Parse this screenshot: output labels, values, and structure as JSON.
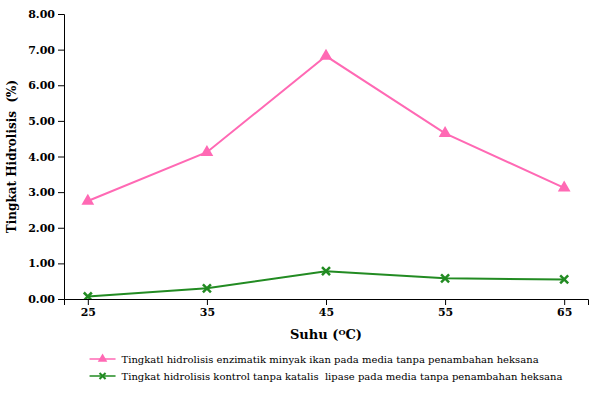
{
  "chart_data": {
    "type": "line",
    "x": [
      25,
      35,
      45,
      55,
      65
    ],
    "xlabel": "Suhu (ᴼC)",
    "ylabel": "Tingkat Hidrolisis  (%)",
    "series": [
      {
        "name": "Tingkatl hidrolisis enzimatik minyak ikan pada media tanpa penambahan heksana",
        "color": "#FF69B4",
        "marker": "triangle",
        "values": [
          2.75,
          4.12,
          6.82,
          4.65,
          3.12
        ]
      },
      {
        "name": "Tingkat hidrolisis kontrol tanpa katalis  lipase pada media tanpa penambahan heksana",
        "color": "#228B22",
        "marker": "x",
        "values": [
          0.07,
          0.3,
          0.78,
          0.58,
          0.55
        ]
      }
    ],
    "xlim": [
      23,
      67
    ],
    "ylim": [
      0.0,
      8.0
    ],
    "xticks": [
      25,
      35,
      45,
      55,
      65
    ],
    "yticks": [
      {
        "value": 0.0,
        "label": "0.00"
      },
      {
        "value": 1.0,
        "label": "1.00"
      },
      {
        "value": 2.0,
        "label": "2.00"
      },
      {
        "value": 3.0,
        "label": "3.00"
      },
      {
        "value": 4.0,
        "label": "4.00"
      },
      {
        "value": 5.0,
        "label": "5.00"
      },
      {
        "value": 6.0,
        "label": "6.00"
      },
      {
        "value": 7.0,
        "label": "7.00"
      },
      {
        "value": 8.0,
        "label": "8.00"
      }
    ],
    "grid": false,
    "legend": "bottom"
  }
}
